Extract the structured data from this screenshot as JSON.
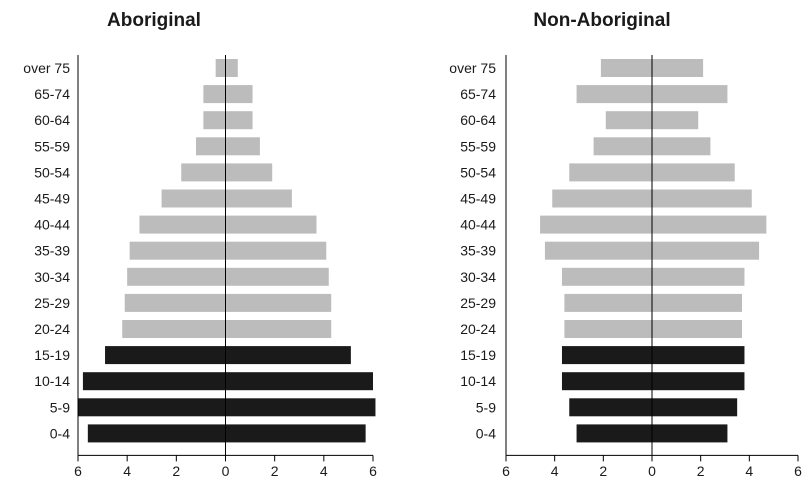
{
  "chart_data": [
    {
      "type": "bar",
      "orientation": "horizontal",
      "style": "population-pyramid",
      "title": "Aboriginal",
      "categories": [
        "over 75",
        "65-74",
        "60-64",
        "55-59",
        "50-54",
        "45-49",
        "40-44",
        "35-39",
        "30-34",
        "25-29",
        "20-24",
        "15-19",
        "10-14",
        "5-9",
        "0-4"
      ],
      "series": [
        {
          "side": "left",
          "values": [
            0.4,
            0.9,
            0.9,
            1.2,
            1.8,
            2.6,
            3.5,
            3.9,
            4.0,
            4.1,
            4.2,
            4.9,
            5.8,
            6.0,
            5.6
          ]
        },
        {
          "side": "right",
          "values": [
            0.5,
            1.1,
            1.1,
            1.4,
            1.9,
            2.7,
            3.7,
            4.1,
            4.2,
            4.3,
            4.3,
            5.1,
            6.0,
            6.1,
            5.7
          ]
        }
      ],
      "highlighted_categories": [
        "15-19",
        "10-14",
        "5-9",
        "0-4"
      ],
      "xlim": [
        -6,
        6
      ],
      "xticks": [
        -6,
        -4,
        -2,
        0,
        2,
        4,
        6
      ],
      "xtick_labels": [
        "6",
        "4",
        "2",
        "0",
        "2",
        "4",
        "6"
      ],
      "xlabel": "",
      "ylabel": ""
    },
    {
      "type": "bar",
      "orientation": "horizontal",
      "style": "population-pyramid",
      "title": "Non-Aboriginal",
      "categories": [
        "over 75",
        "65-74",
        "60-64",
        "55-59",
        "50-54",
        "45-49",
        "40-44",
        "35-39",
        "30-34",
        "25-29",
        "20-24",
        "15-19",
        "10-14",
        "5-9",
        "0-4"
      ],
      "series": [
        {
          "side": "left",
          "values": [
            2.1,
            3.1,
            1.9,
            2.4,
            3.4,
            4.1,
            4.6,
            4.4,
            3.7,
            3.6,
            3.6,
            3.7,
            3.7,
            3.4,
            3.1
          ]
        },
        {
          "side": "right",
          "values": [
            2.1,
            3.1,
            1.9,
            2.4,
            3.4,
            4.1,
            4.7,
            4.4,
            3.8,
            3.7,
            3.7,
            3.8,
            3.8,
            3.5,
            3.1
          ]
        }
      ],
      "highlighted_categories": [
        "15-19",
        "10-14",
        "5-9",
        "0-4"
      ],
      "xlim": [
        -6,
        6
      ],
      "xticks": [
        -6,
        -4,
        -2,
        0,
        2,
        4,
        6
      ],
      "xtick_labels": [
        "6",
        "4",
        "2",
        "0",
        "2",
        "4",
        "6"
      ],
      "xlabel": "",
      "ylabel": ""
    }
  ],
  "colors": {
    "bar": "#bcbcbc",
    "highlight": "#1a1a1a",
    "axis": "#000000",
    "text": "#1a1a1a"
  }
}
